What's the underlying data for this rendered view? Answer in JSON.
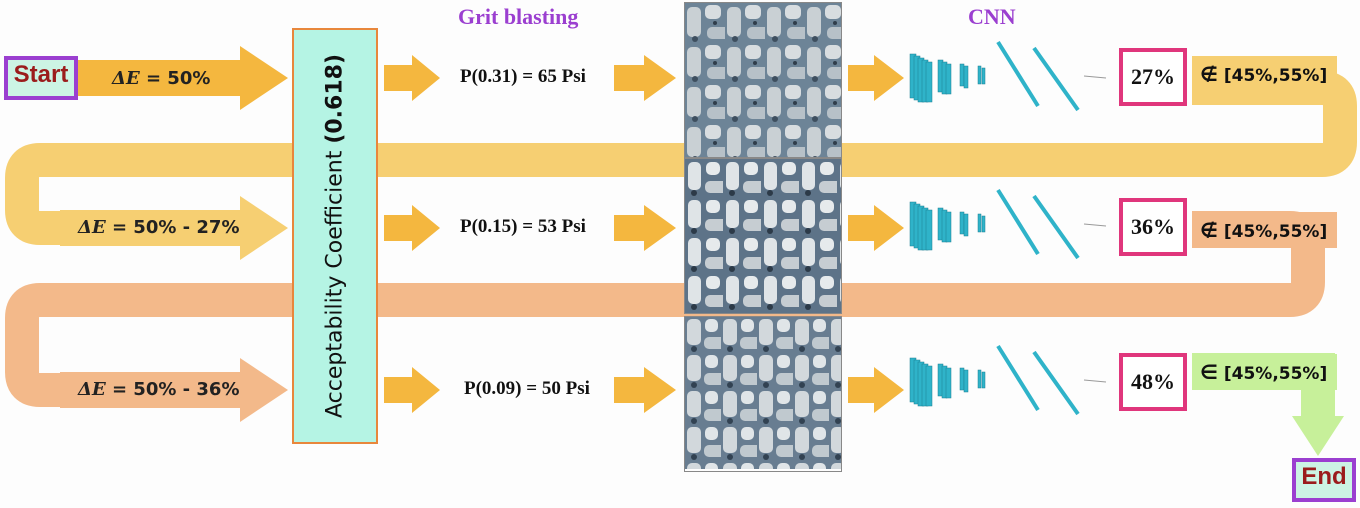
{
  "headers": {
    "grit_blasting": "Grit blasting",
    "cnn": "CNN"
  },
  "nodes": {
    "start": "Start",
    "end": "End"
  },
  "coefficient": {
    "label": "Acceptability Coefficient",
    "value": "(0.618)"
  },
  "rows": [
    {
      "delta_symbol": "ΔE",
      "delta_text": " = 50%",
      "pressure": "P(0.31) = 65 Psi",
      "result": "27%",
      "membership": "∉",
      "range": "[45%,55%]"
    },
    {
      "delta_symbol": "ΔE",
      "delta_text": " = 50% - 27%",
      "pressure": "P(0.15) = 53 Psi",
      "result": "36%",
      "membership": "∉",
      "range": "[45%,55%]"
    },
    {
      "delta_symbol": "ΔE",
      "delta_text": " = 50% - 36%",
      "pressure": "P(0.09) = 50 Psi",
      "result": "48%",
      "membership": "∈",
      "range": "[45%,55%]"
    }
  ],
  "colors": {
    "arrow_orange": "#f4b73f",
    "loop_1": "#f6cf72",
    "loop_2": "#f3b98a",
    "end_arrow": "#c7f09a",
    "node_border": "#9b3fd0",
    "result_border": "#e0367c",
    "header_purple": "#9b3fd0"
  }
}
